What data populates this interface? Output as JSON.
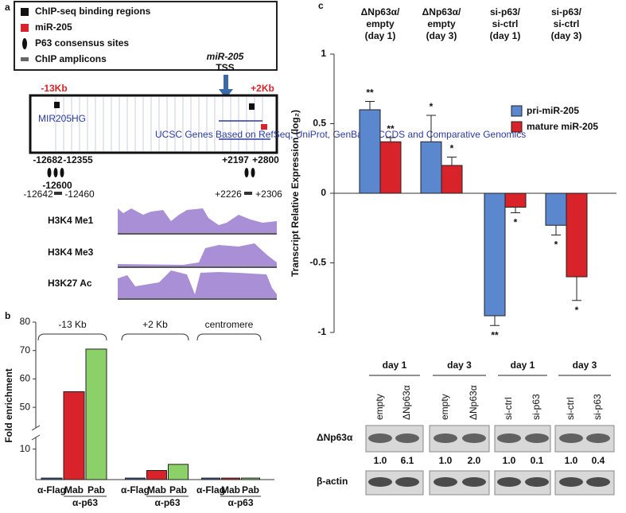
{
  "panel_labels": [
    "a",
    "b",
    "c"
  ],
  "panel_a": {
    "legend": [
      "ChIP-seq binding regions",
      "miR-205",
      "P63 consensus sites",
      "ChIP amplicons"
    ],
    "tss_gene": "miR-205",
    "tss": "TSS",
    "left_kb": "-13Kb",
    "right_kb": "+2Kb",
    "consensus_sites": [
      "-12682",
      "-12355",
      "-12600",
      "+2197",
      "+2800"
    ],
    "amplicons": [
      "-12642",
      "-12460",
      "+2226",
      "+2306"
    ],
    "tracks": [
      "H3K4 Me1",
      "H3K4 Me3",
      "H3K27 Ac"
    ]
  },
  "chart_data": [
    {
      "type": "bar",
      "ylabel": "Fold enrichment",
      "categories": [
        "-13 Kb",
        "+2 Kb",
        "centromere"
      ],
      "group_sublabel": "α-p63",
      "series": [
        {
          "name": "α-Flag",
          "color": "#3a5aa8",
          "values": [
            0.5,
            0.5,
            0.5
          ]
        },
        {
          "name": "Mab",
          "color": "#d9232a",
          "values": [
            55.5,
            3,
            0.5
          ]
        },
        {
          "name": "Pab",
          "color": "#8cd06a",
          "values": [
            70.5,
            5,
            0.5
          ]
        }
      ],
      "ylim": [
        0,
        80
      ],
      "ybreak": [
        12,
        45
      ],
      "yticks": [
        10,
        50,
        60,
        70,
        80
      ]
    },
    {
      "type": "bar",
      "ylabel": "Transcript Relative Expression (log₂)",
      "categories": [
        [
          "ΔNp63α/",
          "empty",
          "(day 1)"
        ],
        [
          "ΔNp63α/",
          "empty",
          "(day 3)"
        ],
        [
          "si-p63/",
          "si-ctrl",
          "(day 1)"
        ],
        [
          "si-p63/",
          "si-ctrl",
          "(day 3)"
        ]
      ],
      "series": [
        {
          "name": "pri-miR-205",
          "color": "#5b87cf",
          "values": [
            0.6,
            0.37,
            -0.88,
            -0.23
          ],
          "errors": [
            0.06,
            0.19,
            0.07,
            0.07
          ],
          "labels": [
            "**",
            "*",
            "**",
            "*"
          ]
        },
        {
          "name": "mature miR-205",
          "color": "#d9232a",
          "values": [
            0.37,
            0.2,
            -0.1,
            -0.6
          ],
          "errors": [
            0.03,
            0.06,
            0.04,
            0.17
          ],
          "labels": [
            "**",
            "*",
            "*",
            "*"
          ]
        }
      ],
      "ylim": [
        -1,
        1
      ],
      "yticks": [
        1,
        0.5,
        0,
        -0.5,
        -1
      ],
      "legend": "upper right"
    }
  ],
  "blot": {
    "days": [
      "day 1",
      "day 3",
      "day 1",
      "day 3"
    ],
    "lanes": [
      "empty",
      "ΔNp63α",
      "empty",
      "ΔNp63α",
      "si-ctrl",
      "si-p63",
      "si-ctrl",
      "si-p63"
    ],
    "rows": [
      "ΔNp63α",
      "β-actin"
    ],
    "quantification": [
      "1.0",
      "6.1",
      "1.0",
      "2.0",
      "1.0",
      "0.1",
      "1.0",
      "0.4"
    ]
  }
}
